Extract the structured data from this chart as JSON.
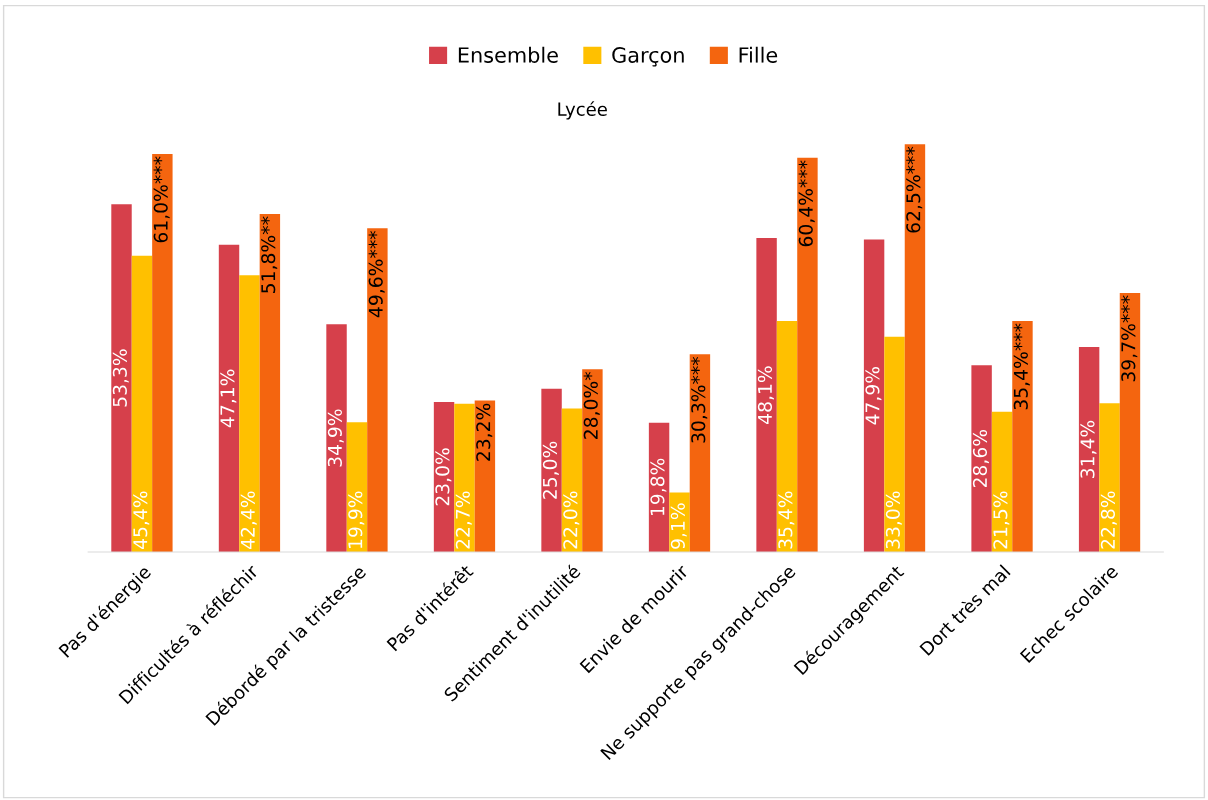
{
  "chart_data": {
    "type": "bar",
    "title": "Lycée",
    "legend": "top",
    "categories": [
      "Pas d'énergie",
      "Difficultés à réfléchir",
      "Débordé par la tristesse",
      "Pas d'intérêt",
      "Sentiment d'inutilité",
      "Envie de mourir",
      "Ne supporte pas grand-chose",
      "Découragement",
      "Dort très mal",
      "Echec scolaire"
    ],
    "series": [
      {
        "name": "Ensemble",
        "color": "#d6404b",
        "values": [
          53.3,
          47.1,
          34.9,
          23.0,
          25.0,
          19.8,
          48.1,
          47.9,
          28.6,
          31.4
        ],
        "value_labels": [
          "53,3%",
          "47,1%",
          "34,9%",
          "23,0%",
          "25,0%",
          "19,8%",
          "48,1%",
          "47,9%",
          "28,6%",
          "31,4%"
        ]
      },
      {
        "name": "Garçon",
        "color": "#ffc000",
        "values": [
          45.4,
          42.4,
          19.9,
          22.7,
          22.0,
          9.1,
          35.4,
          33.0,
          21.5,
          22.8
        ],
        "value_labels": [
          "45,4%",
          "42,4%",
          "19,9%",
          "22,7%",
          "22,0%",
          "9,1%",
          "35,4%",
          "33,0%",
          "21,5%",
          "22,8%"
        ]
      },
      {
        "name": "Fille",
        "color": "#f4650f",
        "values": [
          61.0,
          51.8,
          49.6,
          23.2,
          28.0,
          30.3,
          60.4,
          62.5,
          35.4,
          39.7
        ],
        "value_labels": [
          "61,0%***",
          "51,8%**",
          "49,6%***",
          "23,2%",
          "28,0%*",
          "30,3%***",
          "60,4%***",
          "62,5%***",
          "35,4%***",
          "39,7%***"
        ]
      }
    ]
  }
}
